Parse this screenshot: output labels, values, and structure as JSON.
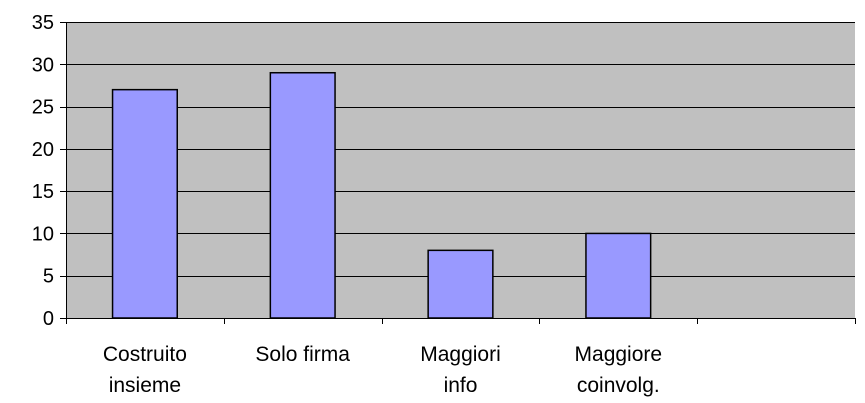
{
  "chart_data": {
    "type": "bar",
    "title": "",
    "xlabel": "",
    "ylabel": "",
    "categories": [
      [
        "Costruito",
        "insieme"
      ],
      [
        "Solo firma"
      ],
      [
        "Maggiori",
        "info"
      ],
      [
        "Maggiore",
        "coinvolg."
      ],
      [
        ""
      ]
    ],
    "values": [
      27,
      29,
      8,
      10,
      null
    ],
    "ylim": [
      0,
      35
    ],
    "yticks": [
      0,
      5,
      10,
      15,
      20,
      25,
      30,
      35
    ],
    "grid": true,
    "legend": "none",
    "colors": {
      "plot_background": "#c0c0c0",
      "bar_fill": "#9999ff",
      "bar_stroke": "#000000",
      "gridline": "#000000",
      "axis": "#000000"
    }
  }
}
